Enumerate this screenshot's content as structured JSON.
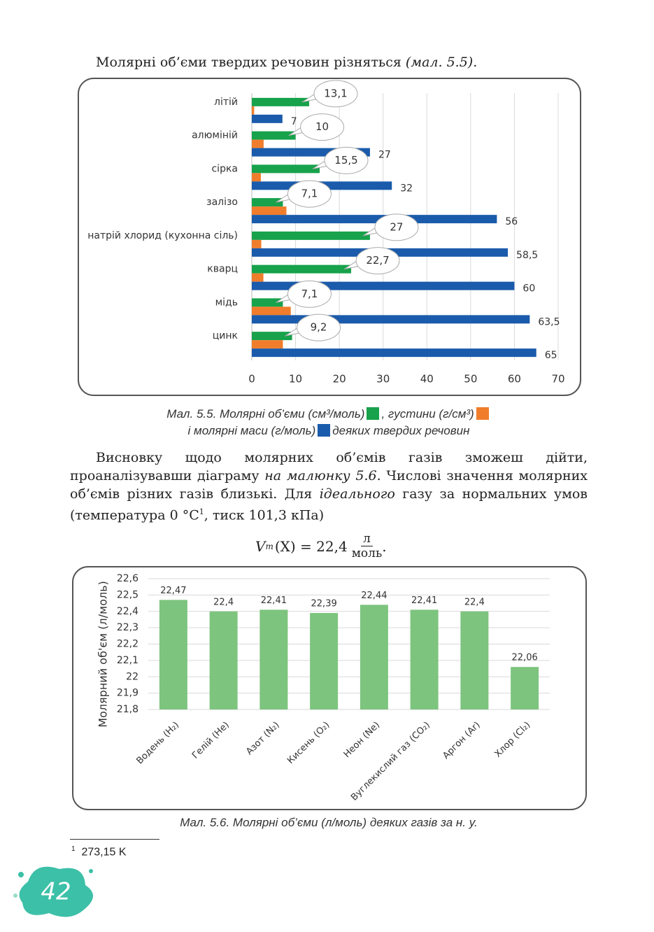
{
  "paragraph_1": [
    "Молярні об’єми твердих речовин різняться ",
    "(мал. 5.5)",
    "."
  ],
  "paragraph_2": [
    "Висновку щодо молярних об’ємів газів зможеш дійти, проаналізувавши діаграму ",
    "на малюнку 5.6",
    ". Числові значення молярних об’ємів різних газів близькі. Для ",
    "ідеального",
    " газу за нормальних умов (температура 0 °C",
    "1",
    ", тиск 101,3 кПа)"
  ],
  "formula": [
    "V",
    "m",
    "(X) = 22,4",
    "л",
    "моль",
    "."
  ],
  "footnote": {
    "mark": "1",
    "text": "273,15 K"
  },
  "page_number": "42",
  "chart_data": [
    {
      "type": "hbar",
      "caption_prefix": "Мал. 5.5.",
      "caption_suffix": "деяких твердих речовин",
      "categories": [
        "літій",
        "алюміній",
        "сірка",
        "залізо",
        "натрій хлорид (кухонна сіль)",
        "кварц",
        "мідь",
        "цинк"
      ],
      "series": [
        {
          "name": "Молярні об’єми (см³/моль)",
          "color": "#17a24b",
          "values": [
            13.1,
            10,
            15.5,
            7.1,
            27,
            22.7,
            7.1,
            9.2
          ],
          "value_labels": [
            "13,1",
            "10",
            "15,5",
            "7,1",
            "27",
            "22,7",
            "7,1",
            "9,2"
          ]
        },
        {
          "name": ", густини (г/см³)",
          "color": "#f07d2b",
          "values": [
            0.53,
            2.7,
            2.07,
            7.9,
            2.16,
            2.65,
            8.9,
            7.1
          ]
        },
        {
          "name": "і молярні маси (г/моль)",
          "color": "#1a5bab",
          "values": [
            7,
            27,
            32,
            56,
            58.5,
            60,
            63.5,
            65
          ],
          "value_labels": [
            "7",
            "27",
            "32",
            "56",
            "58,5",
            "60",
            "63,5",
            "65"
          ]
        }
      ],
      "xlim": [
        0,
        70
      ],
      "xticks": [
        0,
        10,
        20,
        30,
        40,
        50,
        60,
        70
      ],
      "grid": true
    },
    {
      "type": "bar",
      "caption": "Мал. 5.6. Молярні об’єми (л/моль) деяких газів за н. у.",
      "y_label": "Молярний об'єм (л/моль)",
      "categories": [
        "Водень (H₂)",
        "Гелій (He)",
        "Азот (N₂)",
        "Кисень (O₂)",
        "Неон (Ne)",
        "Вуглекислий газ (CO₂)",
        "Аргон (Ar)",
        "Хлор (Cl₂)"
      ],
      "values": [
        22.47,
        22.4,
        22.41,
        22.39,
        22.44,
        22.41,
        22.4,
        22.06
      ],
      "value_labels": [
        "22,47",
        "22,4",
        "22,41",
        "22,39",
        "22,44",
        "22,41",
        "22,4",
        "22,06"
      ],
      "color": "#7dc47e",
      "ylim": [
        21.8,
        22.6
      ],
      "yticks": [
        {
          "value": 21.8,
          "label": "21,8"
        },
        {
          "value": 21.9,
          "label": "21,9"
        },
        22,
        {
          "value": 22.1,
          "label": "22,1"
        },
        {
          "value": 22.2,
          "label": "22,2"
        },
        {
          "value": 22.3,
          "label": "22,3"
        },
        {
          "value": 22.4,
          "label": "22,4"
        },
        {
          "value": 22.5,
          "label": "22,5"
        },
        {
          "value": 22.6,
          "label": "22,6"
        }
      ],
      "grid": true
    }
  ]
}
